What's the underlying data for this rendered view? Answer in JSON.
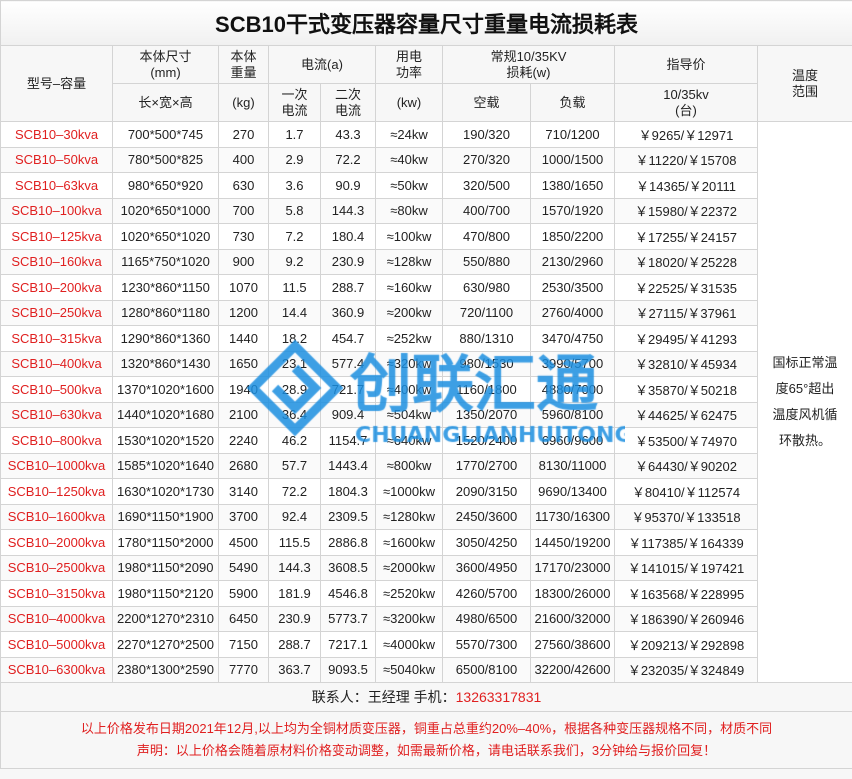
{
  "title": "SCB10干式变压器容量尺寸重量电流损耗表",
  "headers": {
    "model": "型号–容量",
    "size": "本体尺寸\n(mm)",
    "size_sub": "长×宽×高",
    "weight": "本体\n重量",
    "weight_sub": "(kg)",
    "current": "电流(a)",
    "current1": "一次\n电流",
    "current2": "二次\n电流",
    "power": "用电\n功率",
    "power_sub": "(kw)",
    "loss": "常规10/35KV\n损耗(w)",
    "loss_noload": "空载",
    "loss_load": "负载",
    "price": "指导价",
    "price_sub": "10/35kv\n(台)",
    "temp": "温度\n范围"
  },
  "temp_note": "国标正常温度65°超出温度风机循环散热。",
  "rows": [
    [
      "SCB10–30kva",
      "700*500*745",
      "270",
      "1.7",
      "43.3",
      "≈24kw",
      "190/320",
      "710/1200",
      "￥9265/￥12971"
    ],
    [
      "SCB10–50kva",
      "780*500*825",
      "400",
      "2.9",
      "72.2",
      "≈40kw",
      "270/320",
      "1000/1500",
      "￥11220/￥15708"
    ],
    [
      "SCB10–63kva",
      "980*650*920",
      "630",
      "3.6",
      "90.9",
      "≈50kw",
      "320/500",
      "1380/1650",
      "￥14365/￥20111"
    ],
    [
      "SCB10–100kva",
      "1020*650*1000",
      "700",
      "5.8",
      "144.3",
      "≈80kw",
      "400/700",
      "1570/1920",
      "￥15980/￥22372"
    ],
    [
      "SCB10–125kva",
      "1020*650*1020",
      "730",
      "7.2",
      "180.4",
      "≈100kw",
      "470/800",
      "1850/2200",
      "￥17255/￥24157"
    ],
    [
      "SCB10–160kva",
      "1165*750*1020",
      "900",
      "9.2",
      "230.9",
      "≈128kw",
      "550/880",
      "2130/2960",
      "￥18020/￥25228"
    ],
    [
      "SCB10–200kva",
      "1230*860*1150",
      "1070",
      "11.5",
      "288.7",
      "≈160kw",
      "630/980",
      "2530/3500",
      "￥22525/￥31535"
    ],
    [
      "SCB10–250kva",
      "1280*860*1180",
      "1200",
      "14.4",
      "360.9",
      "≈200kw",
      "720/1100",
      "2760/4000",
      "￥27115/￥37961"
    ],
    [
      "SCB10–315kva",
      "1290*860*1360",
      "1440",
      "18.2",
      "454.7",
      "≈252kw",
      "880/1310",
      "3470/4750",
      "￥29495/￥41293"
    ],
    [
      "SCB10–400kva",
      "1320*860*1430",
      "1650",
      "23.1",
      "577.4",
      "≈320kw",
      "980/1530",
      "3990/5700",
      "￥32810/￥45934"
    ],
    [
      "SCB10–500kva",
      "1370*1020*1600",
      "1940",
      "28.9",
      "721.7",
      "≈400kw",
      "1160/1800",
      "4880/7000",
      "￥35870/￥50218"
    ],
    [
      "SCB10–630kva",
      "1440*1020*1680",
      "2100",
      "36.4",
      "909.4",
      "≈504kw",
      "1350/2070",
      "5960/8100",
      "￥44625/￥62475"
    ],
    [
      "SCB10–800kva",
      "1530*1020*1520",
      "2240",
      "46.2",
      "1154.7",
      "≈640kw",
      "1520/2400",
      "6960/9600",
      "￥53500/￥74970"
    ],
    [
      "SCB10–1000kva",
      "1585*1020*1640",
      "2680",
      "57.7",
      "1443.4",
      "≈800kw",
      "1770/2700",
      "8130/11000",
      "￥64430/￥90202"
    ],
    [
      "SCB10–1250kva",
      "1630*1020*1730",
      "3140",
      "72.2",
      "1804.3",
      "≈1000kw",
      "2090/3150",
      "9690/13400",
      "￥80410/￥112574"
    ],
    [
      "SCB10–1600kva",
      "1690*1150*1900",
      "3700",
      "92.4",
      "2309.5",
      "≈1280kw",
      "2450/3600",
      "11730/16300",
      "￥95370/￥133518"
    ],
    [
      "SCB10–2000kva",
      "1780*1150*2000",
      "4500",
      "115.5",
      "2886.8",
      "≈1600kw",
      "3050/4250",
      "14450/19200",
      "￥117385/￥164339"
    ],
    [
      "SCB10–2500kva",
      "1980*1150*2090",
      "5490",
      "144.3",
      "3608.5",
      "≈2000kw",
      "3600/4950",
      "17170/23000",
      "￥141015/￥197421"
    ],
    [
      "SCB10–3150kva",
      "1980*1150*2120",
      "5900",
      "181.9",
      "4546.8",
      "≈2520kw",
      "4260/5700",
      "18300/26000",
      "￥163568/￥228995"
    ],
    [
      "SCB10–4000kva",
      "2200*1270*2310",
      "6450",
      "230.9",
      "5773.7",
      "≈3200kw",
      "4980/6500",
      "21600/32000",
      "￥186390/￥260946"
    ],
    [
      "SCB10–5000kva",
      "2270*1270*2500",
      "7150",
      "288.7",
      "7217.1",
      "≈4000kw",
      "5570/7300",
      "27560/38600",
      "￥209213/￥292898"
    ],
    [
      "SCB10–6300kva",
      "2380*1300*2590",
      "7770",
      "363.7",
      "9093.5",
      "≈5040kw",
      "6500/8100",
      "32200/42600",
      "￥232035/￥324849"
    ]
  ],
  "contact": {
    "label": "联系人：王经理  手机：",
    "phone": "13263317831"
  },
  "footer": [
    "以上价格发布日期2021年12月,以上均为全铜材质变压器，铜重占总重约20%–40%，根据各种变压器规格不同，材质不同",
    "声明：以上价格会随着原材料价格变动调整，如需最新价格，请电话联系我们，3分钟给与报价回复！"
  ],
  "watermark": {
    "cn": "创联汇通",
    "en": "CHUANGLIANHUITONG",
    "color": "#1a8ee0"
  }
}
